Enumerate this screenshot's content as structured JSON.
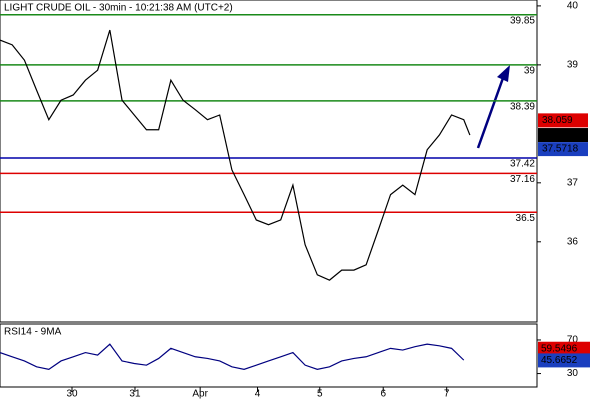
{
  "chart_data": {
    "type": "line",
    "title": "LIGHT CRUDE OIL - 30min - 10:21:38 AM (UTC+2)",
    "xlim": [
      0,
      44
    ],
    "xticks": [
      {
        "value": 5.9,
        "label": "30"
      },
      {
        "value": 11.06,
        "label": "31"
      },
      {
        "value": 16.4,
        "label": "Apr"
      },
      {
        "value": 21.1,
        "label": "4"
      },
      {
        "value": 26.2,
        "label": "5"
      },
      {
        "value": 31.4,
        "label": "6"
      },
      {
        "value": 36.6,
        "label": "7"
      }
    ],
    "ylim": [
      34.64,
      40.1
    ],
    "yticks": [
      40,
      39,
      37,
      36
    ],
    "series": [
      {
        "name": "LIGHT CRUDE OIL",
        "color": "#000000",
        "x": [
          0,
          1,
          2,
          3,
          4,
          5,
          6,
          7,
          8,
          9,
          10,
          11,
          12,
          13,
          14,
          15,
          16,
          17,
          18,
          19,
          20,
          21,
          22,
          23,
          24,
          25,
          26,
          27,
          28,
          29,
          30,
          31,
          32,
          33,
          34,
          35,
          36,
          37,
          38,
          38.5
        ],
        "values": [
          39.42,
          39.34,
          39.08,
          38.57,
          38.07,
          38.4,
          38.49,
          38.74,
          38.91,
          39.59,
          38.4,
          38.15,
          37.9,
          37.9,
          38.74,
          38.4,
          38.24,
          38.07,
          38.15,
          37.22,
          36.8,
          36.37,
          36.29,
          36.37,
          36.96,
          35.95,
          35.44,
          35.35,
          35.52,
          35.52,
          35.61,
          36.2,
          36.8,
          36.96,
          36.8,
          37.56,
          37.81,
          38.15,
          38.07,
          37.81
        ]
      }
    ],
    "levels": [
      {
        "value": 39.85,
        "color": "#1a8a1a"
      },
      {
        "value": 39,
        "color": "#1a8a1a"
      },
      {
        "value": 38.39,
        "color": "#1a8a1a"
      },
      {
        "value": 37.42,
        "color": "#0000aa"
      },
      {
        "value": 37.16,
        "color": "#dd0000"
      },
      {
        "value": 36.5,
        "color": "#dd0000"
      }
    ],
    "price_markers": [
      {
        "value": 38.059,
        "color": "#dd0000"
      },
      {
        "value": 37.81,
        "color": "#000000"
      },
      {
        "value": 37.5718,
        "color": "#1a3fbf"
      }
    ],
    "rsi": {
      "title": "RSI14 - 9MA",
      "ylim": [
        14,
        89
      ],
      "yticks": [
        70,
        30
      ],
      "color": "#000080",
      "values": [
        55,
        50,
        45,
        38,
        35,
        45,
        50,
        55,
        52,
        65,
        45,
        42,
        40,
        48,
        60,
        55,
        50,
        48,
        45,
        38,
        35,
        40,
        45,
        50,
        55,
        40,
        35,
        38,
        45,
        48,
        50,
        55,
        60,
        58,
        62,
        65,
        63,
        60,
        46
      ],
      "markers": [
        {
          "value": 59.5496,
          "color": "#dd0000"
        },
        {
          "value": 45.6652,
          "color": "#1a3fbf"
        }
      ]
    }
  }
}
